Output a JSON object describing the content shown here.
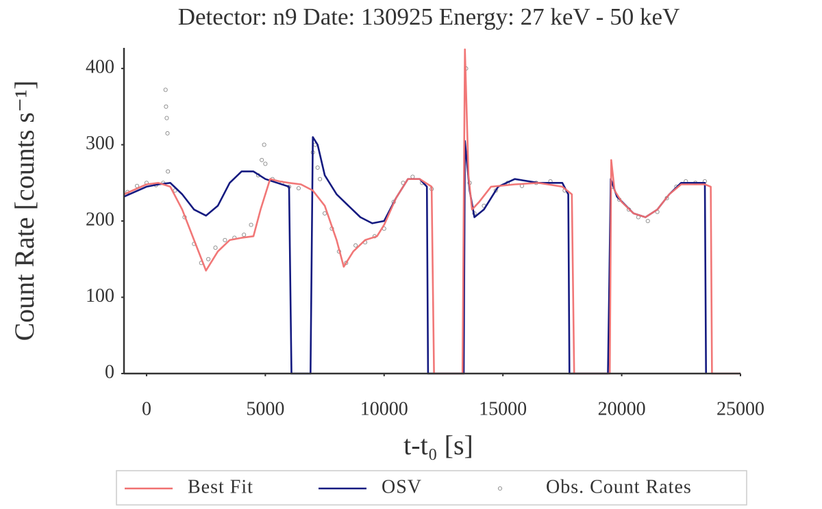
{
  "chart_data": {
    "type": "line",
    "title": "Detector: n9 Date: 130925 Energy: 27 keV - 50 keV",
    "xlabel": "t-t₀ [s]",
    "ylabel": "Count Rate [counts s⁻¹]",
    "xlim": [
      -950,
      25000
    ],
    "ylim": [
      0,
      427
    ],
    "xticks": [
      0,
      5000,
      10000,
      15000,
      20000,
      25000
    ],
    "yticks": [
      0,
      100,
      200,
      300,
      400
    ],
    "grid": false,
    "legend": "bottom",
    "series": [
      {
        "name": "Best Fit",
        "color": "#f07070",
        "style": "line",
        "x": [
          -950,
          0,
          500,
          1000,
          1500,
          2000,
          2500,
          3000,
          3500,
          4000,
          4500,
          4800,
          5200,
          5600,
          6000,
          6500,
          7000,
          7500,
          8000,
          8300,
          8700,
          9200,
          9700,
          10000,
          10500,
          11000,
          11500,
          12000,
          12100,
          13300,
          13400,
          13550,
          13700,
          14000,
          14500,
          15500,
          16500,
          17500,
          17900,
          18000,
          19500,
          19560,
          19700,
          20000,
          20500,
          21000,
          21500,
          22000,
          22500,
          23500,
          23750,
          23800,
          25000
        ],
        "values": [
          235,
          248,
          250,
          245,
          215,
          175,
          135,
          160,
          175,
          178,
          180,
          215,
          255,
          252,
          250,
          248,
          240,
          220,
          175,
          140,
          160,
          175,
          180,
          195,
          230,
          255,
          255,
          245,
          0,
          0,
          425,
          260,
          215,
          225,
          245,
          248,
          250,
          245,
          235,
          0,
          0,
          280,
          240,
          225,
          210,
          205,
          215,
          235,
          248,
          248,
          245,
          0,
          0
        ]
      },
      {
        "name": "OSV",
        "color": "#141a80",
        "style": "line",
        "x": [
          -950,
          0,
          500,
          1000,
          1500,
          2000,
          2500,
          3000,
          3500,
          4000,
          4500,
          5000,
          5500,
          6000,
          6100,
          6900,
          7000,
          7200,
          7500,
          8000,
          8500,
          9000,
          9500,
          10000,
          10500,
          11000,
          11500,
          11800,
          11850,
          13350,
          13400,
          13600,
          13800,
          14200,
          14800,
          15500,
          16500,
          17500,
          17750,
          17800,
          19420,
          19480,
          19540,
          19800,
          20500,
          21000,
          21500,
          22000,
          22500,
          23500,
          23550
        ],
        "values": [
          232,
          245,
          248,
          250,
          235,
          215,
          207,
          220,
          250,
          265,
          265,
          255,
          250,
          245,
          0,
          0,
          310,
          300,
          260,
          235,
          220,
          205,
          197,
          200,
          230,
          255,
          255,
          245,
          0,
          0,
          305,
          240,
          205,
          215,
          245,
          255,
          250,
          250,
          235,
          0,
          0,
          125,
          255,
          232,
          210,
          205,
          215,
          235,
          250,
          250,
          0
        ]
      },
      {
        "name": "Obs. Count Rates",
        "color": "#888888",
        "style": "markers",
        "x": [
          -800,
          -400,
          0,
          400,
          700,
          800,
          820,
          850,
          880,
          900,
          1200,
          1600,
          2000,
          2300,
          2600,
          2900,
          3300,
          3700,
          4100,
          4400,
          4700,
          4850,
          4950,
          5000,
          5300,
          5700,
          6000,
          6400,
          7000,
          7100,
          7200,
          7300,
          7500,
          7800,
          8100,
          8400,
          8800,
          9200,
          9600,
          10000,
          10400,
          10800,
          11200,
          11600,
          12000,
          13450,
          13600,
          13800,
          14200,
          14700,
          15200,
          15800,
          16400,
          17000,
          17600,
          19600,
          19900,
          20300,
          20700,
          21100,
          21500,
          21900,
          22300,
          22700,
          23100,
          23500
        ],
        "values": [
          238,
          246,
          250,
          247,
          250,
          372,
          350,
          335,
          315,
          265,
          240,
          205,
          170,
          145,
          150,
          165,
          175,
          178,
          182,
          195,
          260,
          280,
          300,
          275,
          255,
          250,
          245,
          243,
          290,
          300,
          270,
          255,
          210,
          190,
          160,
          145,
          168,
          172,
          180,
          190,
          225,
          250,
          258,
          250,
          242,
          400,
          250,
          210,
          220,
          240,
          250,
          246,
          250,
          252,
          240,
          245,
          228,
          215,
          205,
          200,
          212,
          230,
          245,
          252,
          250,
          252
        ]
      }
    ]
  }
}
